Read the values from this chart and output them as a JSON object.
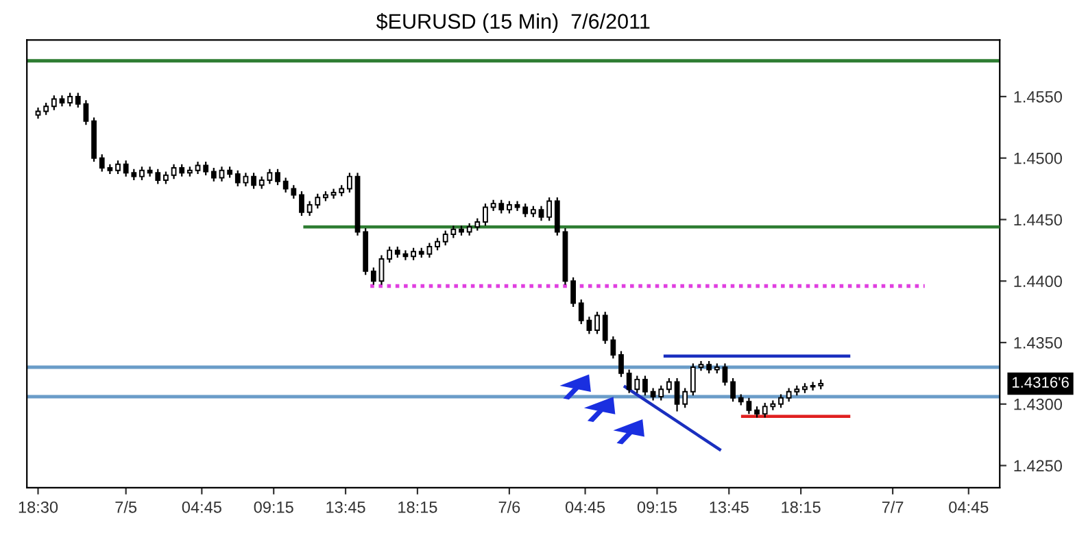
{
  "chart_data": {
    "type": "candlestick",
    "title": "$EURUSD (15 Min)  7/6/2011",
    "color": "#000000",
    "x": [
      "2011-07-04T18:30",
      "2011-07-04T19:00",
      "2011-07-04T19:30",
      "2011-07-04T20:00",
      "2011-07-04T20:30",
      "2011-07-04T21:00",
      "2011-07-04T21:30",
      "2011-07-04T22:00",
      "2011-07-04T22:30",
      "2011-07-04T23:00",
      "2011-07-04T23:30",
      "2011-07-05T00:00",
      "2011-07-05T00:30",
      "2011-07-05T01:00",
      "2011-07-05T01:30",
      "2011-07-05T02:00",
      "2011-07-05T02:30",
      "2011-07-05T03:00",
      "2011-07-05T03:30",
      "2011-07-05T04:00",
      "2011-07-05T04:30",
      "2011-07-05T05:00",
      "2011-07-05T05:30",
      "2011-07-05T06:00",
      "2011-07-05T06:30",
      "2011-07-05T07:00",
      "2011-07-05T07:30",
      "2011-07-05T08:00",
      "2011-07-05T08:30",
      "2011-07-05T09:00",
      "2011-07-05T09:30",
      "2011-07-05T10:00",
      "2011-07-05T10:30",
      "2011-07-05T11:00",
      "2011-07-05T11:30",
      "2011-07-05T12:00",
      "2011-07-05T12:30",
      "2011-07-05T13:00",
      "2011-07-05T13:30",
      "2011-07-05T14:00",
      "2011-07-05T14:30",
      "2011-07-05T15:00",
      "2011-07-05T15:30",
      "2011-07-05T16:00",
      "2011-07-05T16:30",
      "2011-07-05T17:00",
      "2011-07-05T17:30",
      "2011-07-05T18:00",
      "2011-07-05T18:30",
      "2011-07-05T19:00",
      "2011-07-05T19:30",
      "2011-07-05T20:00",
      "2011-07-05T20:30",
      "2011-07-05T21:00",
      "2011-07-05T21:30",
      "2011-07-05T22:00",
      "2011-07-05T22:30",
      "2011-07-05T23:00",
      "2011-07-05T23:30",
      "2011-07-06T00:00",
      "2011-07-06T00:30",
      "2011-07-06T01:00",
      "2011-07-06T01:30",
      "2011-07-06T02:00",
      "2011-07-06T02:30",
      "2011-07-06T03:00",
      "2011-07-06T03:30",
      "2011-07-06T04:00",
      "2011-07-06T04:30",
      "2011-07-06T05:00",
      "2011-07-06T05:30",
      "2011-07-06T06:00",
      "2011-07-06T06:30",
      "2011-07-06T07:00",
      "2011-07-06T07:30",
      "2011-07-06T08:00",
      "2011-07-06T08:30",
      "2011-07-06T09:00",
      "2011-07-06T09:30",
      "2011-07-06T10:00",
      "2011-07-06T10:30",
      "2011-07-06T11:00",
      "2011-07-06T11:30",
      "2011-07-06T12:00",
      "2011-07-06T12:30",
      "2011-07-06T13:00",
      "2011-07-06T13:30",
      "2011-07-06T14:00",
      "2011-07-06T14:30",
      "2011-07-06T15:00",
      "2011-07-06T15:30",
      "2011-07-06T16:00",
      "2011-07-06T16:30",
      "2011-07-06T17:00",
      "2011-07-06T17:30",
      "2011-07-06T18:00",
      "2011-07-06T18:30",
      "2011-07-06T19:00",
      "2011-07-06T19:30"
    ],
    "ohlc": [
      [
        1.4535,
        1.4541,
        1.4532,
        1.4538
      ],
      [
        1.4538,
        1.4545,
        1.4535,
        1.4542
      ],
      [
        1.4542,
        1.4551,
        1.4539,
        1.4548
      ],
      [
        1.4548,
        1.4551,
        1.4542,
        1.4545
      ],
      [
        1.4545,
        1.4553,
        1.4542,
        1.455
      ],
      [
        1.455,
        1.4553,
        1.4541,
        1.4544
      ],
      [
        1.4544,
        1.4547,
        1.4527,
        1.453
      ],
      [
        1.453,
        1.4533,
        1.4497,
        1.45
      ],
      [
        1.45,
        1.4503,
        1.4489,
        1.4492
      ],
      [
        1.4492,
        1.4495,
        1.4487,
        1.449
      ],
      [
        1.449,
        1.4498,
        1.4487,
        1.4495
      ],
      [
        1.4495,
        1.4498,
        1.4485,
        1.4488
      ],
      [
        1.4488,
        1.4491,
        1.4482,
        1.4485
      ],
      [
        1.4485,
        1.4493,
        1.4482,
        1.449
      ],
      [
        1.449,
        1.4493,
        1.4485,
        1.4488
      ],
      [
        1.4488,
        1.4491,
        1.4479,
        1.4482
      ],
      [
        1.4482,
        1.4489,
        1.4479,
        1.4486
      ],
      [
        1.4486,
        1.4495,
        1.4483,
        1.4492
      ],
      [
        1.4492,
        1.4495,
        1.4485,
        1.4488
      ],
      [
        1.4488,
        1.4493,
        1.4485,
        1.449
      ],
      [
        1.449,
        1.4497,
        1.4487,
        1.4494
      ],
      [
        1.4494,
        1.4497,
        1.4486,
        1.4489
      ],
      [
        1.4489,
        1.4492,
        1.4481,
        1.4484
      ],
      [
        1.4484,
        1.4493,
        1.4481,
        1.449
      ],
      [
        1.449,
        1.4493,
        1.4484,
        1.4487
      ],
      [
        1.4487,
        1.449,
        1.4477,
        1.448
      ],
      [
        1.448,
        1.4488,
        1.4477,
        1.4485
      ],
      [
        1.4485,
        1.4488,
        1.4475,
        1.4478
      ],
      [
        1.4478,
        1.4485,
        1.4475,
        1.4482
      ],
      [
        1.4482,
        1.4491,
        1.4479,
        1.4488
      ],
      [
        1.4488,
        1.4491,
        1.4478,
        1.4481
      ],
      [
        1.4481,
        1.4484,
        1.4472,
        1.4475
      ],
      [
        1.4475,
        1.4478,
        1.4467,
        1.447
      ],
      [
        1.447,
        1.4473,
        1.4453,
        1.4456
      ],
      [
        1.4456,
        1.4465,
        1.4453,
        1.4462
      ],
      [
        1.4462,
        1.4471,
        1.4459,
        1.4468
      ],
      [
        1.4468,
        1.4473,
        1.4465,
        1.447
      ],
      [
        1.447,
        1.4475,
        1.4467,
        1.4472
      ],
      [
        1.4472,
        1.4478,
        1.4469,
        1.4475
      ],
      [
        1.4475,
        1.4488,
        1.4472,
        1.4485
      ],
      [
        1.4485,
        1.4488,
        1.4437,
        1.444
      ],
      [
        1.444,
        1.4443,
        1.4405,
        1.4408
      ],
      [
        1.4408,
        1.4411,
        1.4397,
        1.44
      ],
      [
        1.44,
        1.4421,
        1.4397,
        1.4418
      ],
      [
        1.4418,
        1.4428,
        1.4415,
        1.4425
      ],
      [
        1.4425,
        1.4428,
        1.4419,
        1.4422
      ],
      [
        1.4422,
        1.4425,
        1.4417,
        1.442
      ],
      [
        1.442,
        1.4427,
        1.4417,
        1.4424
      ],
      [
        1.4424,
        1.4427,
        1.4419,
        1.4422
      ],
      [
        1.4422,
        1.4431,
        1.4419,
        1.4428
      ],
      [
        1.4428,
        1.4435,
        1.4425,
        1.4432
      ],
      [
        1.4432,
        1.4441,
        1.4429,
        1.4438
      ],
      [
        1.4438,
        1.4445,
        1.4435,
        1.4442
      ],
      [
        1.4442,
        1.4445,
        1.4437,
        1.444
      ],
      [
        1.444,
        1.4447,
        1.4437,
        1.4444
      ],
      [
        1.4444,
        1.4451,
        1.4441,
        1.4448
      ],
      [
        1.4448,
        1.4463,
        1.4445,
        1.446
      ],
      [
        1.446,
        1.4466,
        1.4457,
        1.4463
      ],
      [
        1.4463,
        1.4466,
        1.4455,
        1.4458
      ],
      [
        1.4458,
        1.4465,
        1.4455,
        1.4462
      ],
      [
        1.4462,
        1.4465,
        1.4457,
        1.446
      ],
      [
        1.446,
        1.4463,
        1.4452,
        1.4455
      ],
      [
        1.4455,
        1.4461,
        1.4452,
        1.4458
      ],
      [
        1.4458,
        1.4461,
        1.4449,
        1.4452
      ],
      [
        1.4452,
        1.4468,
        1.4449,
        1.4465
      ],
      [
        1.4465,
        1.4468,
        1.4437,
        1.444
      ],
      [
        1.444,
        1.4443,
        1.4397,
        1.44
      ],
      [
        1.44,
        1.4403,
        1.4379,
        1.4382
      ],
      [
        1.4382,
        1.4385,
        1.4365,
        1.4368
      ],
      [
        1.4368,
        1.4371,
        1.4357,
        1.436
      ],
      [
        1.436,
        1.4375,
        1.4357,
        1.4372
      ],
      [
        1.4372,
        1.4375,
        1.4349,
        1.4352
      ],
      [
        1.4352,
        1.4355,
        1.4337,
        1.434
      ],
      [
        1.434,
        1.4343,
        1.4322,
        1.4325
      ],
      [
        1.4325,
        1.4328,
        1.4309,
        1.4312
      ],
      [
        1.4312,
        1.4323,
        1.4309,
        1.432
      ],
      [
        1.432,
        1.4323,
        1.4307,
        1.431
      ],
      [
        1.431,
        1.4313,
        1.4303,
        1.4306
      ],
      [
        1.4306,
        1.4315,
        1.4303,
        1.4312
      ],
      [
        1.4312,
        1.4321,
        1.4309,
        1.4318
      ],
      [
        1.4318,
        1.4321,
        1.4294,
        1.43
      ],
      [
        1.43,
        1.4313,
        1.4297,
        1.431
      ],
      [
        1.431,
        1.4333,
        1.4307,
        1.433
      ],
      [
        1.433,
        1.4335,
        1.4327,
        1.4332
      ],
      [
        1.4332,
        1.4335,
        1.4325,
        1.4328
      ],
      [
        1.4328,
        1.4333,
        1.4325,
        1.433
      ],
      [
        1.433,
        1.4333,
        1.4315,
        1.4318
      ],
      [
        1.4318,
        1.4321,
        1.4302,
        1.4305
      ],
      [
        1.4305,
        1.4308,
        1.4299,
        1.4302
      ],
      [
        1.4302,
        1.4305,
        1.4292,
        1.4295
      ],
      [
        1.4295,
        1.4298,
        1.4289,
        1.4292
      ],
      [
        1.4292,
        1.4301,
        1.4289,
        1.4298
      ],
      [
        1.4298,
        1.4303,
        1.4295,
        1.43
      ],
      [
        1.43,
        1.4308,
        1.4297,
        1.4305
      ],
      [
        1.4305,
        1.4313,
        1.4302,
        1.431
      ],
      [
        1.431,
        1.4315,
        1.4307,
        1.4312
      ],
      [
        1.4312,
        1.4317,
        1.4309,
        1.4314
      ],
      [
        1.4314,
        1.4318,
        1.4311,
        1.4315
      ],
      [
        1.4315,
        1.432,
        1.4312,
        1.43166
      ]
    ],
    "series": [
      {
        "type": "line",
        "x": [
          "2011-07-05T11:12",
          "2011-07-07T06:42"
        ],
        "values": [
          1.4444,
          1.4444
        ],
        "color": "#2e7d32",
        "line_style": "solid"
      },
      {
        "type": "line",
        "x": [
          "2011-07-05T15:18",
          "2011-07-07T02:00"
        ],
        "values": [
          1.4396,
          1.4396
        ],
        "color": "#e040e0",
        "line_style": "dotted"
      },
      {
        "type": "line",
        "x": [
          "2011-07-06T09:45",
          "2011-07-06T21:15"
        ],
        "values": [
          1.4339,
          1.4339
        ],
        "color": "#1a2fbf",
        "line_style": "solid"
      },
      {
        "type": "line",
        "x": [
          "2011-07-06T14:36",
          "2011-07-06T21:15"
        ],
        "values": [
          1.429,
          1.429
        ],
        "color": "#e02020",
        "line_style": "solid"
      },
      {
        "type": "line",
        "x": [
          "2011-07-06T07:15",
          "2011-07-06T13:10"
        ],
        "values": [
          1.4314,
          1.4263
        ],
        "color": "#1a2fbf",
        "line_style": "solid"
      }
    ],
    "ref_lines": [
      {
        "axis": "y",
        "value": 1.4579,
        "color": "#2e7d32"
      },
      {
        "axis": "y",
        "value": 1.433,
        "color": "#6a9cc8"
      },
      {
        "axis": "y",
        "value": 1.4306,
        "color": "#6a9cc8"
      }
    ],
    "annotations": [
      "1.4316'6"
    ],
    "xlim": [
      "2011-07-04T17:48",
      "2011-07-07T06:42"
    ],
    "ylim": [
      1.4232,
      1.4596
    ],
    "xticks": [
      {
        "value": "2011-07-04T18:30",
        "label": "18:30"
      },
      {
        "value": "2011-07-05T00:00",
        "label": "7/5"
      },
      {
        "value": "2011-07-05T04:45",
        "label": "04:45"
      },
      {
        "value": "2011-07-05T09:15",
        "label": "09:15"
      },
      {
        "value": "2011-07-05T13:45",
        "label": "13:45"
      },
      {
        "value": "2011-07-05T18:15",
        "label": "18:15"
      },
      {
        "value": "2011-07-06T00:00",
        "label": "7/6"
      },
      {
        "value": "2011-07-06T04:45",
        "label": "04:45"
      },
      {
        "value": "2011-07-06T09:15",
        "label": "09:15"
      },
      {
        "value": "2011-07-06T13:45",
        "label": "13:45"
      },
      {
        "value": "2011-07-06T18:15",
        "label": "18:15"
      },
      {
        "value": "2011-07-07T00:00",
        "label": "7/7"
      },
      {
        "value": "2011-07-07T04:45",
        "label": "04:45"
      }
    ],
    "yticks": [
      {
        "value": 1.425,
        "label": "1.4250"
      },
      {
        "value": 1.43,
        "label": "1.4300"
      },
      {
        "value": 1.435,
        "label": "1.4350"
      },
      {
        "value": 1.44,
        "label": "1.4400"
      },
      {
        "value": 1.445,
        "label": "1.4450"
      },
      {
        "value": 1.45,
        "label": "1.4500"
      },
      {
        "value": 1.455,
        "label": "1.4550"
      }
    ],
    "grid": false,
    "legend": false
  }
}
